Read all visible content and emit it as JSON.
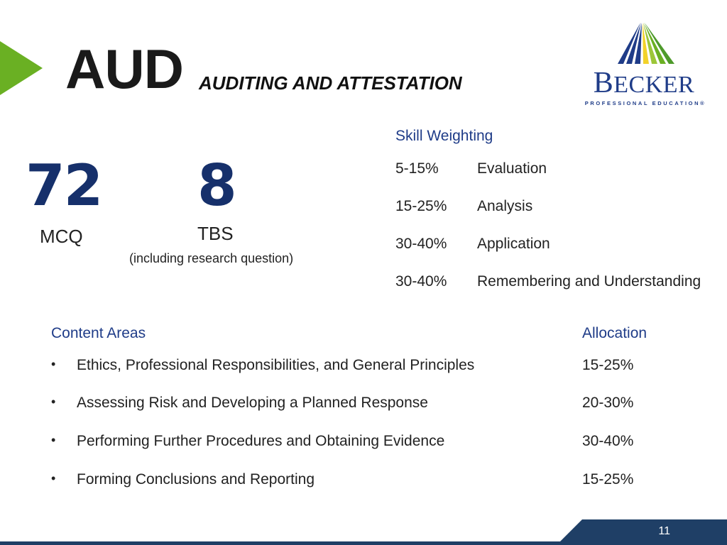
{
  "header": {
    "title": "AUD",
    "subtitle": "AUDITING AND ATTESTATION"
  },
  "logo": {
    "name_first": "B",
    "name_rest": "ECKER",
    "tagline": "PROFESSIONAL EDUCATION®"
  },
  "counts": {
    "mcq_number": "72",
    "mcq_label": "MCQ",
    "tbs_number": "8",
    "tbs_label": "TBS",
    "tbs_note": "(including research question)"
  },
  "skills": {
    "heading": "Skill Weighting",
    "rows": [
      {
        "pct": "5-15%",
        "name": "Evaluation"
      },
      {
        "pct": "15-25%",
        "name": "Analysis"
      },
      {
        "pct": "30-40%",
        "name": "Application"
      },
      {
        "pct": "30-40%",
        "name": "Remembering and Understanding"
      }
    ]
  },
  "content": {
    "heading": "Content Areas",
    "alloc_heading": "Allocation",
    "bullet": "•",
    "rows": [
      {
        "text": "Ethics, Professional Responsibilities, and General Principles",
        "alloc": "15-25%"
      },
      {
        "text": "Assessing Risk and Developing a Planned Response",
        "alloc": "20-30%"
      },
      {
        "text": "Performing Further Procedures and Obtaining Evidence",
        "alloc": "30-40%"
      },
      {
        "text": "Forming Conclusions and Reporting",
        "alloc": "15-25%"
      }
    ]
  },
  "footer": {
    "page_number": "11"
  },
  "colors": {
    "accent_green": "#6ab023",
    "brand_blue": "#1f3c88",
    "footer_navy": "#1f3f66"
  }
}
